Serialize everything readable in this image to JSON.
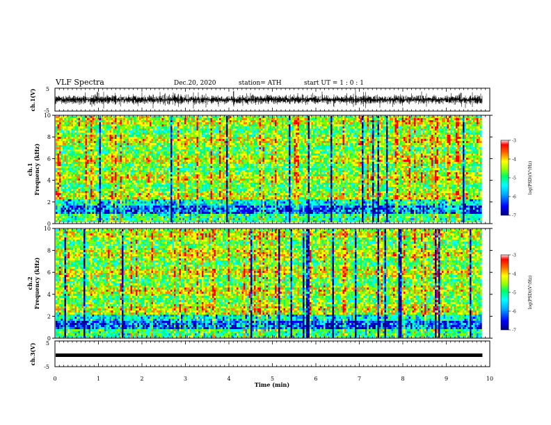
{
  "header": {
    "title": "VLF Spectra",
    "date": "Dec.20, 2020",
    "station": "station= ATH",
    "start": "start  UT =   1 : 0  : 1"
  },
  "chart_data": [
    {
      "type": "line",
      "name": "ch1-waveform",
      "ylabel": "ch.1(V)",
      "ylim": [
        -5,
        5
      ],
      "yticks": [
        "5",
        "-5"
      ],
      "xlim": [
        0,
        10
      ],
      "data_end_min": 9.83
    },
    {
      "type": "heatmap",
      "name": "ch1-spectrogram",
      "ylabel": "ch.1\nFrequency (kHz)",
      "ylim": [
        0,
        10
      ],
      "yticks": [
        "0",
        "2",
        "4",
        "6",
        "8",
        "10"
      ],
      "xlim": [
        0,
        10
      ],
      "data_end_min": 9.83,
      "colorbar": {
        "label": "log(PSD)(V²/Hz)",
        "range": [
          -7,
          -3
        ],
        "ticks": [
          "-3",
          "-4",
          "-5",
          "-6",
          "-7"
        ]
      }
    },
    {
      "type": "heatmap",
      "name": "ch2-spectrogram",
      "ylabel": "ch.2\nFrequency (kHz)",
      "ylim": [
        0,
        10
      ],
      "yticks": [
        "0",
        "2",
        "4",
        "6",
        "8",
        "10"
      ],
      "xlim": [
        0,
        10
      ],
      "data_end_min": 9.83,
      "colorbar": {
        "label": "log(PSD)(V²/Hz)",
        "range": [
          -7,
          -3
        ],
        "ticks": [
          "-3",
          "-4",
          "-5",
          "-6",
          "-7"
        ]
      }
    },
    {
      "type": "line",
      "name": "ch3-waveform",
      "ylabel": "ch.3(V)",
      "ylim": [
        -5,
        5
      ],
      "yticks": [
        "5",
        "-5"
      ],
      "xlim": [
        0,
        10
      ],
      "data_end_min": 9.83,
      "level_v": 0
    }
  ],
  "xaxis": {
    "label": "Time  (min)",
    "ticks": [
      "0",
      "1",
      "2",
      "3",
      "4",
      "5",
      "6",
      "7",
      "8",
      "9",
      "10"
    ]
  },
  "colors": {
    "colormap": [
      "#000080",
      "#0000ff",
      "#0080ff",
      "#00ffff",
      "#00ff80",
      "#80ff00",
      "#ffff00",
      "#ff8000",
      "#ff0000",
      "#ffffff"
    ]
  }
}
